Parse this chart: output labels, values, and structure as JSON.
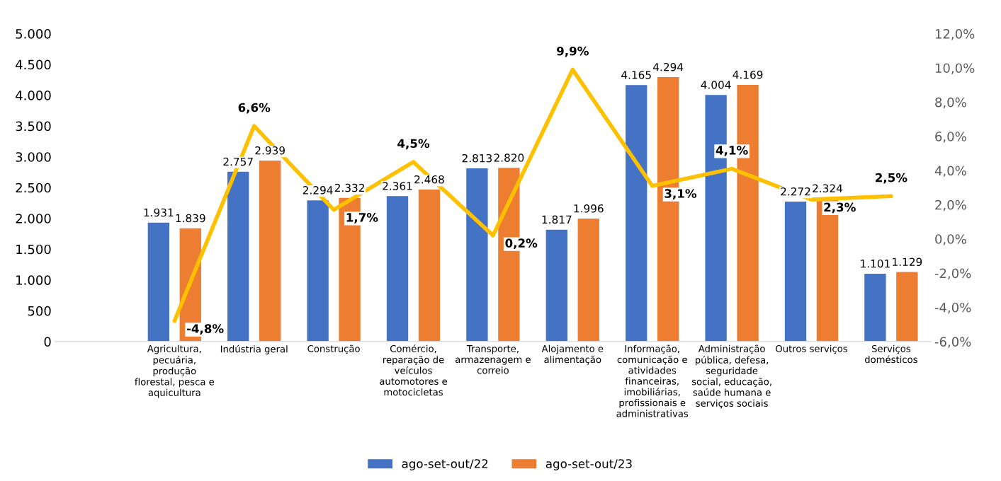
{
  "chart_data": {
    "type": "bar",
    "categories": [
      null,
      "Agricultura,\npecuária,\nprodução\nflorestal, pesca e\naquicultura",
      "Indústria geral",
      "Construção",
      "Comércio,\nreparação de\nveículos\nautomotores e\nmotocicletas",
      "Transporte,\narmazenagem e\ncorreio",
      "Alojamento e\nalimentação",
      "Informação,\ncomunicação e\natividades\nfinanceiras,\nimobiliárias,\nprofissionais e\nadministrativas",
      "Administração\npública, defesa,\nseguridade\nsocial, educação,\nsaúde humana e\nserviços sociais",
      "Outros serviços",
      "Serviços\ndomésticos"
    ],
    "series": [
      {
        "name": "ago-set-out/22",
        "color": "#4472c4",
        "values": [
          null,
          1931,
          2757,
          2294,
          2361,
          2813,
          1817,
          4165,
          4004,
          2272,
          1101
        ],
        "value_labels": [
          null,
          "1.931",
          "2.757",
          "2.294",
          "2.361",
          "2.813",
          "1.817",
          "4.165",
          "4.004",
          "2.272",
          "1.101"
        ]
      },
      {
        "name": "ago-set-out/23",
        "color": "#ed7d31",
        "values": [
          null,
          1839,
          2939,
          2332,
          2468,
          2820,
          1996,
          4294,
          4169,
          2324,
          1129
        ],
        "value_labels": [
          null,
          "1.839",
          "2.939",
          "2.332",
          "2.468",
          "2.820",
          "1.996",
          "4.294",
          "4.169",
          "2.324",
          "1.129"
        ]
      },
      {
        "type": "line",
        "axis": "y2",
        "color": "#ffc000",
        "values": [
          null,
          -4.8,
          6.6,
          1.7,
          4.5,
          0.2,
          9.9,
          3.1,
          4.1,
          2.3,
          2.5
        ],
        "value_labels": [
          null,
          "-4,8%",
          "6,6%",
          "1,7%",
          "4,5%",
          "0,2%",
          "9,9%",
          "3,1%",
          "4,1%",
          "2,3%",
          "2,5%"
        ]
      }
    ],
    "ylim": [
      0,
      5000
    ],
    "yticks": [
      {
        "value": 0,
        "label": "0"
      },
      {
        "value": 500,
        "label": "500"
      },
      {
        "value": 1000,
        "label": "1.000"
      },
      {
        "value": 1500,
        "label": "1.500"
      },
      {
        "value": 2000,
        "label": "2.000"
      },
      {
        "value": 2500,
        "label": "2.500"
      },
      {
        "value": 3000,
        "label": "3.000"
      },
      {
        "value": 3500,
        "label": "3.500"
      },
      {
        "value": 4000,
        "label": "4.000"
      },
      {
        "value": 4500,
        "label": "4.500"
      },
      {
        "value": 5000,
        "label": "5.000"
      }
    ],
    "y2lim": [
      -6,
      12
    ],
    "y2ticks": [
      {
        "value": -6,
        "label": "-6,0%"
      },
      {
        "value": -4,
        "label": "-4,0%"
      },
      {
        "value": -2,
        "label": "-2,0%"
      },
      {
        "value": 0,
        "label": "0,0%"
      },
      {
        "value": 2,
        "label": "2,0%"
      },
      {
        "value": 4,
        "label": "4,0%"
      },
      {
        "value": 6,
        "label": "6,0%"
      },
      {
        "value": 8,
        "label": "8,0%"
      },
      {
        "value": 10,
        "label": "10,0%"
      },
      {
        "value": 12,
        "label": "12,0%"
      }
    ],
    "grid": false,
    "legend": "bottom"
  }
}
